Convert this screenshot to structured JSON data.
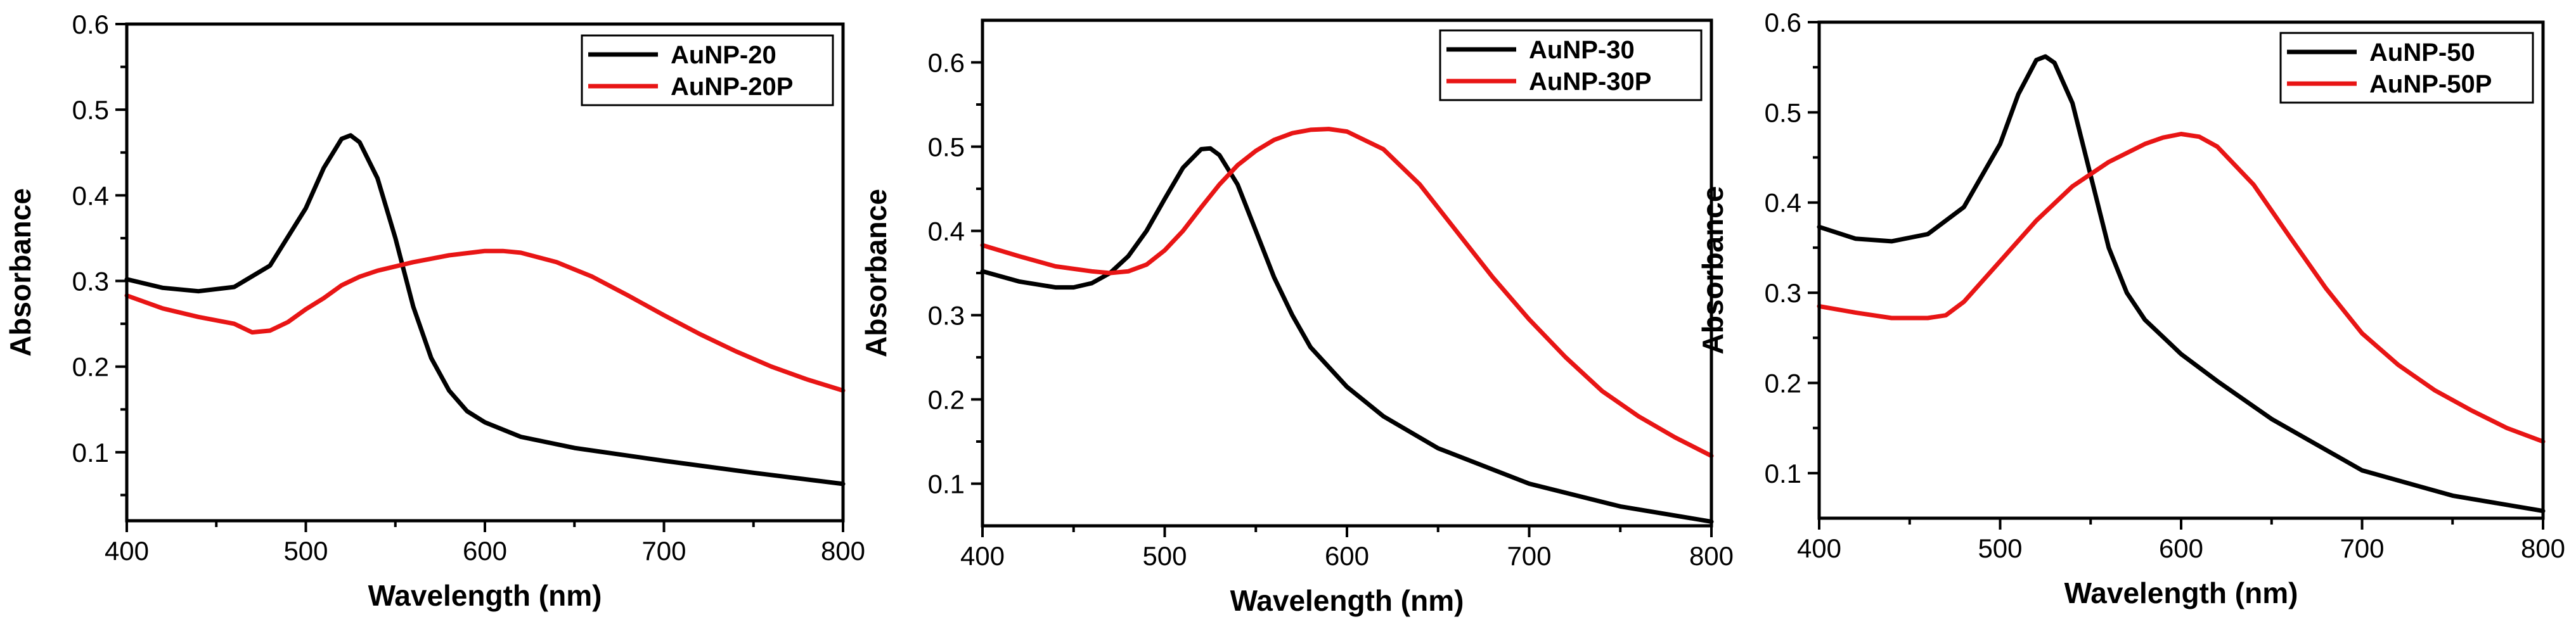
{
  "chart_data": [
    {
      "type": "line",
      "title": "",
      "xlabel": "Wavelength (nm)",
      "ylabel": "Absorbance",
      "xlim": [
        400,
        800
      ],
      "ylim": [
        0.02,
        0.6
      ],
      "xticks": [
        400,
        500,
        600,
        700,
        800
      ],
      "yticks": [
        0.1,
        0.2,
        0.3,
        0.4,
        0.5,
        0.6
      ],
      "legend_position": "top-right",
      "series": [
        {
          "name": "AuNP-20",
          "color": "#000000",
          "x": [
            400,
            420,
            440,
            460,
            480,
            500,
            510,
            520,
            525,
            530,
            540,
            550,
            560,
            570,
            580,
            590,
            600,
            620,
            650,
            700,
            750,
            800
          ],
          "y": [
            0.302,
            0.292,
            0.288,
            0.293,
            0.318,
            0.385,
            0.432,
            0.466,
            0.47,
            0.462,
            0.42,
            0.35,
            0.27,
            0.21,
            0.172,
            0.148,
            0.135,
            0.118,
            0.105,
            0.09,
            0.076,
            0.063
          ]
        },
        {
          "name": "AuNP-20P",
          "color": "#e81515",
          "x": [
            400,
            420,
            440,
            460,
            470,
            480,
            490,
            500,
            510,
            520,
            530,
            540,
            560,
            580,
            600,
            610,
            620,
            640,
            660,
            680,
            700,
            720,
            740,
            760,
            780,
            800
          ],
          "y": [
            0.283,
            0.268,
            0.258,
            0.25,
            0.24,
            0.242,
            0.252,
            0.267,
            0.28,
            0.295,
            0.305,
            0.312,
            0.322,
            0.33,
            0.335,
            0.335,
            0.333,
            0.322,
            0.305,
            0.283,
            0.26,
            0.238,
            0.218,
            0.2,
            0.185,
            0.172
          ]
        }
      ]
    },
    {
      "type": "line",
      "title": "",
      "xlabel": "Wavelength (nm)",
      "ylabel": "Absorbance",
      "xlim": [
        400,
        800
      ],
      "ylim": [
        0.05,
        0.65
      ],
      "xticks": [
        400,
        500,
        600,
        700,
        800
      ],
      "yticks": [
        0.1,
        0.2,
        0.3,
        0.4,
        0.5,
        0.6
      ],
      "legend_position": "top-right",
      "series": [
        {
          "name": "AuNP-30",
          "color": "#000000",
          "x": [
            400,
            420,
            440,
            450,
            460,
            470,
            480,
            490,
            500,
            510,
            520,
            525,
            530,
            540,
            550,
            560,
            570,
            580,
            600,
            620,
            650,
            700,
            750,
            800
          ],
          "y": [
            0.352,
            0.34,
            0.333,
            0.333,
            0.338,
            0.35,
            0.37,
            0.4,
            0.438,
            0.475,
            0.497,
            0.498,
            0.49,
            0.455,
            0.4,
            0.345,
            0.3,
            0.262,
            0.215,
            0.18,
            0.142,
            0.1,
            0.073,
            0.055
          ]
        },
        {
          "name": "AuNP-30P",
          "color": "#e81515",
          "x": [
            400,
            420,
            440,
            460,
            470,
            480,
            490,
            500,
            510,
            520,
            530,
            540,
            550,
            560,
            570,
            580,
            590,
            600,
            620,
            640,
            660,
            680,
            700,
            720,
            740,
            760,
            780,
            800
          ],
          "y": [
            0.383,
            0.37,
            0.358,
            0.352,
            0.35,
            0.352,
            0.36,
            0.377,
            0.4,
            0.428,
            0.455,
            0.478,
            0.495,
            0.508,
            0.516,
            0.52,
            0.521,
            0.518,
            0.497,
            0.455,
            0.4,
            0.345,
            0.295,
            0.25,
            0.21,
            0.18,
            0.155,
            0.133
          ]
        }
      ]
    },
    {
      "type": "line",
      "title": "",
      "xlabel": "Wavelength (nm)",
      "ylabel": "Absorbance",
      "xlim": [
        400,
        800
      ],
      "ylim": [
        0.05,
        0.6
      ],
      "xticks": [
        400,
        500,
        600,
        700,
        800
      ],
      "yticks": [
        0.1,
        0.2,
        0.3,
        0.4,
        0.5,
        0.6
      ],
      "legend_position": "top-right",
      "series": [
        {
          "name": "AuNP-50",
          "color": "#000000",
          "x": [
            400,
            420,
            440,
            460,
            480,
            500,
            510,
            520,
            525,
            530,
            540,
            550,
            560,
            570,
            580,
            600,
            620,
            650,
            700,
            750,
            800
          ],
          "y": [
            0.373,
            0.36,
            0.357,
            0.365,
            0.395,
            0.465,
            0.52,
            0.558,
            0.562,
            0.555,
            0.51,
            0.43,
            0.35,
            0.3,
            0.27,
            0.232,
            0.202,
            0.16,
            0.103,
            0.075,
            0.058
          ]
        },
        {
          "name": "AuNP-50P",
          "color": "#e81515",
          "x": [
            400,
            420,
            440,
            460,
            470,
            480,
            500,
            520,
            540,
            560,
            580,
            590,
            600,
            610,
            620,
            640,
            660,
            680,
            700,
            720,
            740,
            760,
            780,
            800
          ],
          "y": [
            0.285,
            0.278,
            0.272,
            0.272,
            0.275,
            0.29,
            0.335,
            0.38,
            0.418,
            0.445,
            0.465,
            0.472,
            0.476,
            0.473,
            0.462,
            0.42,
            0.362,
            0.305,
            0.255,
            0.22,
            0.192,
            0.17,
            0.15,
            0.135
          ]
        }
      ]
    }
  ]
}
